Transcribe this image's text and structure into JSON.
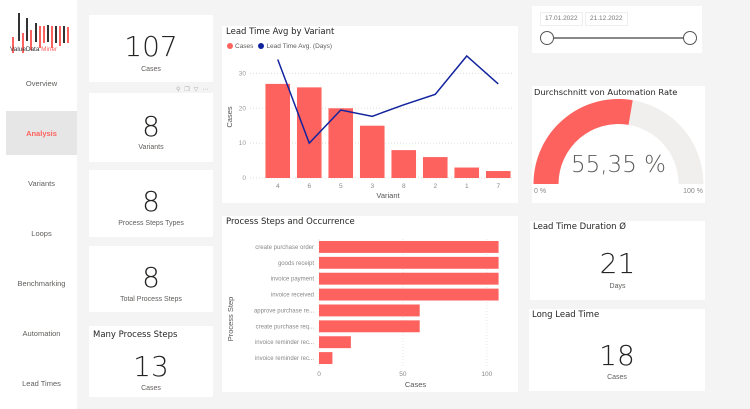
{
  "logo": {
    "text_main": "ValueData",
    "text_accent": "Miner"
  },
  "sidebar": {
    "items": [
      {
        "label": "Overview",
        "active": false
      },
      {
        "label": "Analysis",
        "active": true
      },
      {
        "label": "Variants",
        "active": false
      },
      {
        "label": "Loops",
        "active": false
      },
      {
        "label": "Benchmarking",
        "active": false
      },
      {
        "label": "Automation",
        "active": false
      },
      {
        "label": "Lead Times",
        "active": false
      }
    ]
  },
  "kpis": {
    "cases": {
      "value": "107",
      "label": "Cases"
    },
    "variants": {
      "value": "8",
      "label": "Variants"
    },
    "process_step_types": {
      "value": "8",
      "label": "Process Steps Types"
    },
    "total_process_steps": {
      "value": "8",
      "label": "Total Process Steps"
    },
    "many_process_steps": {
      "title": "Many Process Steps",
      "value": "13",
      "label": "Cases"
    },
    "lead_time_duration": {
      "title": "Lead Time Duration Ø",
      "value": "21",
      "label": "Days"
    },
    "long_lead_time": {
      "title": "Long Lead Time",
      "value": "18",
      "label": "Cases"
    }
  },
  "toolbar_icons": [
    "pin-icon",
    "copy-icon",
    "filter-icon",
    "more-icon"
  ],
  "date_slider": {
    "start": "17.01.2022",
    "end": "21.12.2022"
  },
  "gauge": {
    "title": "Durchschnitt von Automation Rate",
    "value": 55.35,
    "value_label": "55,35 %",
    "min_label": "0 %",
    "max_label": "100 %",
    "fill_color": "#fd625e",
    "track_color": "#f0efee"
  },
  "colors": {
    "accent": "#fd625e",
    "line": "#12239e"
  },
  "chart_data": [
    {
      "type": "bar",
      "title": "Lead Time Avg by Variant",
      "xlabel": "Variant",
      "ylabel": "Cases",
      "categories": [
        "4",
        "6",
        "5",
        "3",
        "8",
        "2",
        "1",
        "7"
      ],
      "ylim": [
        0,
        35
      ],
      "yticks": [
        "0",
        "10",
        "20",
        "30"
      ],
      "grid": true,
      "legend": "top-left",
      "series": [
        {
          "name": "Cases",
          "type": "bar",
          "values": [
            27,
            26,
            20,
            15,
            8,
            6,
            3,
            2
          ]
        },
        {
          "name": "Lead Time Avg. (Days)",
          "type": "line",
          "values": [
            34,
            10,
            19.5,
            17.7,
            21,
            24,
            35,
            27
          ]
        }
      ]
    },
    {
      "type": "bar",
      "orientation": "horizontal",
      "title": "Process Steps and Occurrence",
      "xlabel": "Cases",
      "ylabel": "Process Step",
      "categories": [
        "create purchase order",
        "goods receipt",
        "invoice payment",
        "invoice received",
        "approve purchase re...",
        "create purchase req...",
        "invoice reminder rec...",
        "invoice reminder rec..."
      ],
      "values": [
        107,
        107,
        107,
        107,
        60,
        60,
        19,
        8
      ],
      "xlim": [
        0,
        115
      ],
      "xticks": [
        "0",
        "50",
        "100"
      ],
      "grid": true
    }
  ]
}
